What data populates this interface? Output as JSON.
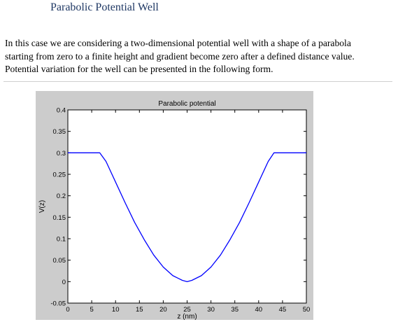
{
  "document": {
    "heading": "Parabolic Potential Well",
    "paragraph_lines": [
      "In this case we are considering a two-dimensional potential well with a shape of a parabola",
      "starting from zero to a finite height and gradient become zero after a defined distance value.",
      "Potential variation for the well can be presented in the following form."
    ]
  },
  "chart_data": {
    "type": "line",
    "title": "Parabolic potential",
    "xlabel": "z (nm)",
    "ylabel": "V(z)",
    "xlim": [
      0,
      50
    ],
    "ylim": [
      -0.05,
      0.4
    ],
    "xticks": [
      0,
      5,
      10,
      15,
      20,
      25,
      30,
      35,
      40,
      45,
      50
    ],
    "yticks": [
      -0.05,
      0,
      0.05,
      0.1,
      0.15,
      0.2,
      0.25,
      0.3,
      0.35,
      0.4
    ],
    "x_tick_labels": [
      "0",
      "5",
      "10",
      "15",
      "20",
      "25",
      "30",
      "35",
      "40",
      "45",
      "50"
    ],
    "y_tick_labels": [
      "-0.05",
      "0",
      "0.05",
      "0.1",
      "0.15",
      "0.2",
      "0.25",
      "0.3",
      "0.35",
      "0.4"
    ],
    "grid": false,
    "series": [
      {
        "color": "#0000ff",
        "x": [
          0,
          3.8,
          6.7,
          8,
          10,
          12,
          14,
          16,
          18,
          20,
          22,
          24,
          25,
          26,
          28,
          30,
          32,
          34,
          36,
          38,
          40,
          42,
          43.2,
          46,
          50
        ],
        "y": [
          0.3,
          0.3,
          0.3,
          0.28,
          0.232,
          0.184,
          0.138,
          0.098,
          0.062,
          0.034,
          0.014,
          0.003,
          0.0,
          0.003,
          0.014,
          0.034,
          0.062,
          0.098,
          0.138,
          0.184,
          0.232,
          0.28,
          0.3,
          0.3,
          0.3
        ]
      }
    ]
  }
}
